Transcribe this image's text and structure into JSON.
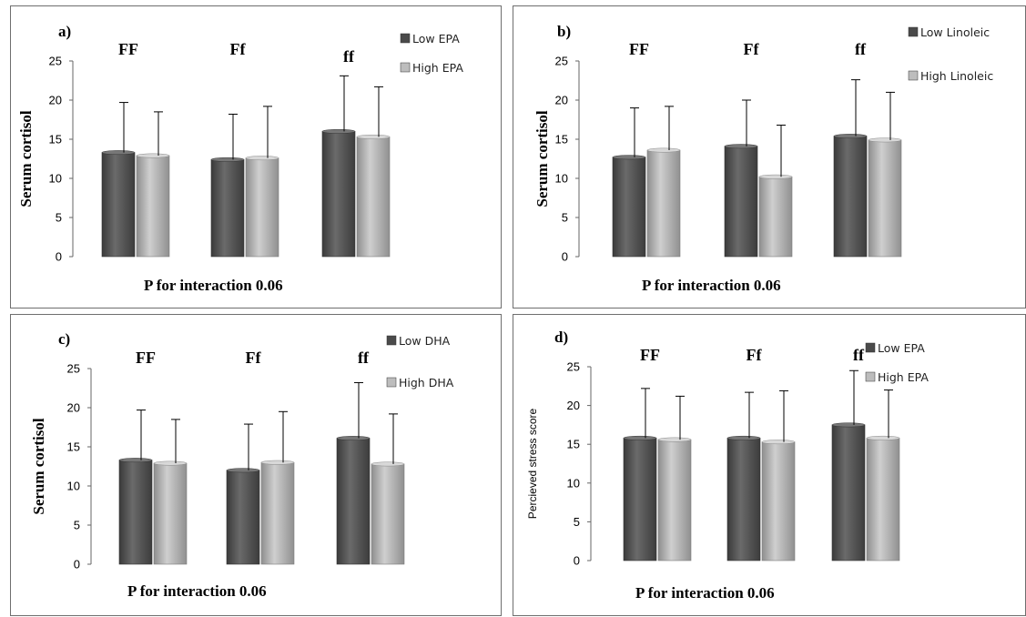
{
  "chart_data": [
    {
      "type": "bar",
      "panel_label": "a)",
      "categories": [
        "FF",
        "Ff",
        "ff"
      ],
      "series": [
        {
          "name": "Low EPA",
          "values": [
            13.3,
            12.4,
            16.0
          ],
          "errors": [
            6.4,
            5.8,
            7.1
          ],
          "color": "#5a5a5a"
        },
        {
          "name": "High EPA",
          "values": [
            12.9,
            12.6,
            15.3
          ],
          "errors": [
            5.6,
            6.6,
            6.4
          ],
          "color": "#a8a8a8"
        }
      ],
      "ylabel": "Serum cortisol",
      "yticks": [
        "0",
        "5",
        "10",
        "15",
        "20",
        "25"
      ],
      "ylim": [
        0,
        25
      ],
      "note": "P for interaction  0.06",
      "legend": "top-right"
    },
    {
      "type": "bar",
      "panel_label": "b)",
      "categories": [
        "FF",
        "Ff",
        "ff"
      ],
      "series": [
        {
          "name": "Low Linoleic",
          "values": [
            12.7,
            14.1,
            15.4
          ],
          "errors": [
            6.3,
            5.9,
            7.2
          ],
          "color": "#5a5a5a"
        },
        {
          "name": "High Linoleic",
          "values": [
            13.6,
            10.2,
            14.9
          ],
          "errors": [
            5.6,
            6.6,
            6.1
          ],
          "color": "#a8a8a8"
        }
      ],
      "ylabel": "Serum cortisol",
      "yticks": [
        "0",
        "5",
        "10",
        "15",
        "20",
        "25"
      ],
      "ylim": [
        0,
        25
      ],
      "note": "P for interaction  0.06",
      "legend": "top-right"
    },
    {
      "type": "bar",
      "panel_label": "c)",
      "categories": [
        "FF",
        "Ff",
        "ff"
      ],
      "series": [
        {
          "name": "Low DHA",
          "values": [
            13.3,
            12.0,
            16.1
          ],
          "errors": [
            6.4,
            5.9,
            7.1
          ],
          "color": "#5a5a5a"
        },
        {
          "name": "High DHA",
          "values": [
            12.9,
            13.0,
            12.8
          ],
          "errors": [
            5.6,
            6.5,
            6.4
          ],
          "color": "#a8a8a8"
        }
      ],
      "ylabel": "Serum cortisol",
      "yticks": [
        "0",
        "5",
        "10",
        "15",
        "20",
        "25"
      ],
      "ylim": [
        0,
        25
      ],
      "note": "P for interaction  0.06",
      "legend": "top-right"
    },
    {
      "type": "bar",
      "panel_label": "d)",
      "categories": [
        "FF",
        "Ff",
        "ff"
      ],
      "series": [
        {
          "name": "Low EPA",
          "values": [
            15.8,
            15.8,
            17.5
          ],
          "errors": [
            6.4,
            5.9,
            7.0
          ],
          "color": "#5a5a5a"
        },
        {
          "name": "High EPA",
          "values": [
            15.6,
            15.3,
            15.8
          ],
          "errors": [
            5.6,
            6.6,
            6.2
          ],
          "color": "#a8a8a8"
        }
      ],
      "ylabel": "Percieved stress score",
      "yticks": [
        "0",
        "5",
        "10",
        "15",
        "20",
        "25"
      ],
      "ylim": [
        0,
        25
      ],
      "note": "P for interaction  0.06",
      "legend": "top-right"
    }
  ]
}
